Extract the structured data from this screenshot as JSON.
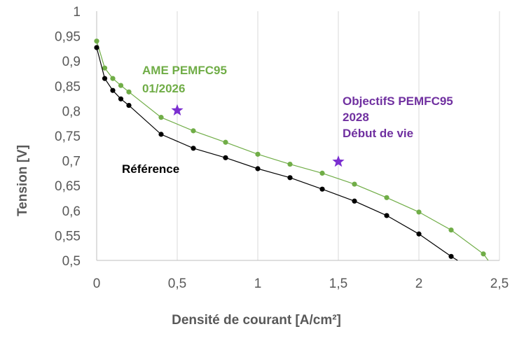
{
  "chart_data": {
    "type": "line",
    "xlabel": "Densité de courant [A/cm²]",
    "ylabel": "Tension [V]",
    "xlim": [
      0,
      2.5
    ],
    "ylim": [
      0.5,
      1.0
    ],
    "x_ticks": [
      "0",
      "0,5",
      "1",
      "1,5",
      "2",
      "2,5"
    ],
    "y_ticks": [
      "0,5",
      "0,55",
      "0,6",
      "0,65",
      "0,7",
      "0,75",
      "0,8",
      "0,85",
      "0,9",
      "0,95",
      "1"
    ],
    "grid": "vertical",
    "series": [
      {
        "name": "AME PEMFC95 01/2026",
        "color": "#70ad47",
        "x": [
          0,
          0.05,
          0.1,
          0.15,
          0.2,
          0.4,
          0.6,
          0.8,
          1.0,
          1.2,
          1.4,
          1.6,
          1.8,
          2.0,
          2.2,
          2.4,
          2.43
        ],
        "y": [
          0.94,
          0.886,
          0.865,
          0.851,
          0.838,
          0.787,
          0.76,
          0.737,
          0.713,
          0.693,
          0.675,
          0.653,
          0.626,
          0.597,
          0.561,
          0.513,
          0.5
        ],
        "markers": [
          true,
          true,
          true,
          true,
          true,
          true,
          true,
          true,
          true,
          true,
          true,
          true,
          true,
          true,
          true,
          true,
          false
        ]
      },
      {
        "name": "Référence",
        "color": "#000000",
        "x": [
          0,
          0.05,
          0.1,
          0.15,
          0.2,
          0.4,
          0.6,
          0.8,
          1.0,
          1.2,
          1.4,
          1.6,
          1.8,
          2.0,
          2.2,
          2.24
        ],
        "y": [
          0.927,
          0.865,
          0.841,
          0.824,
          0.811,
          0.753,
          0.725,
          0.706,
          0.684,
          0.666,
          0.643,
          0.619,
          0.59,
          0.553,
          0.508,
          0.5
        ],
        "markers": [
          true,
          true,
          true,
          true,
          true,
          true,
          true,
          true,
          true,
          true,
          true,
          true,
          true,
          true,
          true,
          false
        ]
      }
    ],
    "targets": {
      "color": "#7b2fd0",
      "points": [
        {
          "x": 0.5,
          "y": 0.801
        },
        {
          "x": 1.5,
          "y": 0.698
        }
      ]
    },
    "annotations": {
      "ame_line1": "AME PEMFC95",
      "ame_line2": "01/2026",
      "ref_label": "Référence",
      "obj_line1": "ObjectifS PEMFC95",
      "obj_line2": "2028",
      "obj_line3": "Début de vie"
    }
  }
}
